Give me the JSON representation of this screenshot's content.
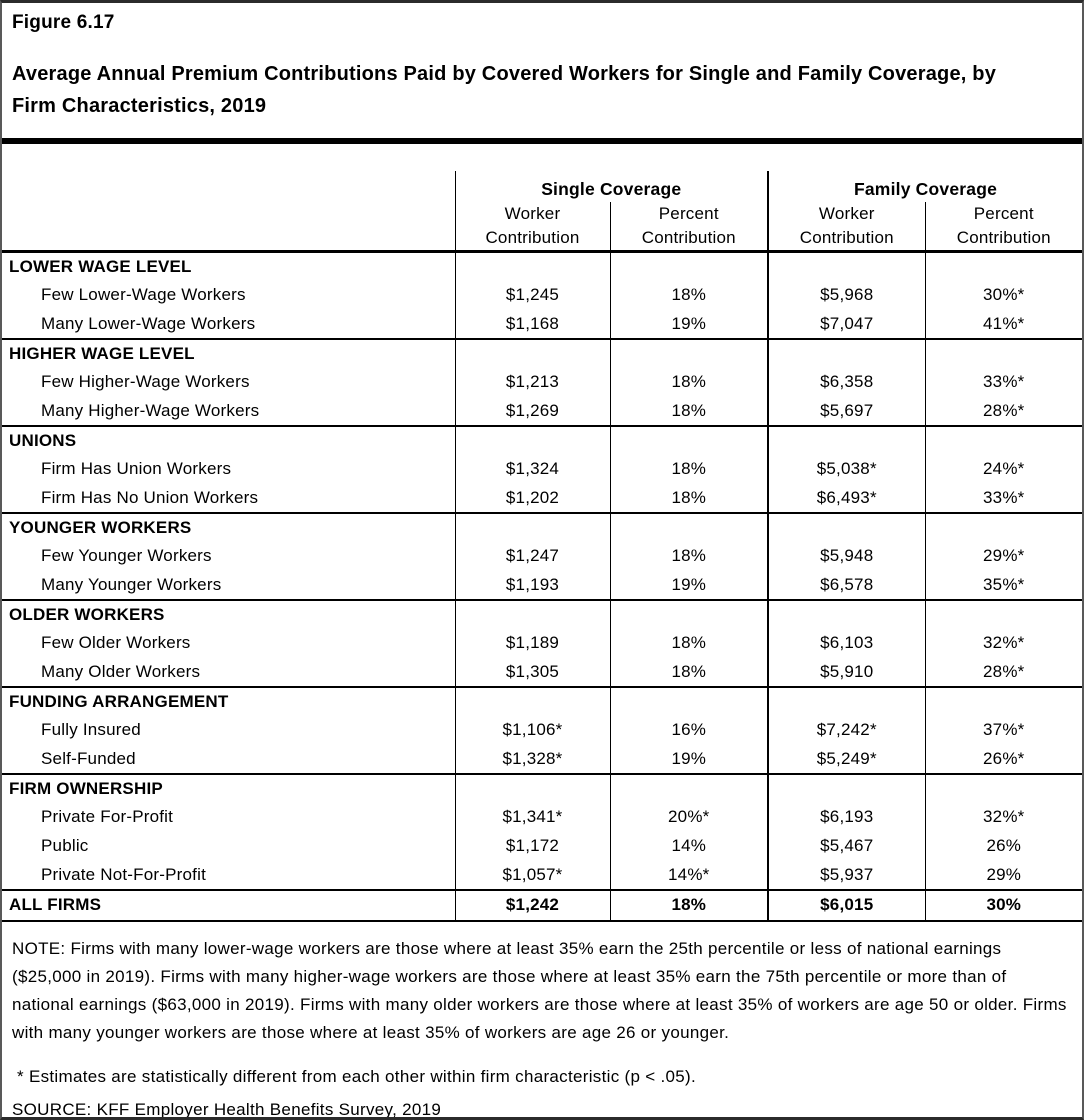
{
  "figure": {
    "label": "Figure 6.17",
    "title": "Average Annual Premium Contributions Paid by Covered Workers for Single and Family Coverage, by Firm Characteristics, 2019"
  },
  "table": {
    "col_groups": [
      {
        "label": "Single Coverage"
      },
      {
        "label": "Family Coverage"
      }
    ],
    "sub_headers": [
      "Worker\nContribution",
      "Percent\nContribution",
      "Worker\nContribution",
      "Percent\nContribution"
    ],
    "rows": [
      {
        "type": "section",
        "label": "LOWER WAGE LEVEL"
      },
      {
        "type": "data",
        "label": "Few Lower-Wage Workers",
        "values": [
          "$1,245",
          "18%",
          "$5,968",
          "30%*"
        ]
      },
      {
        "type": "data",
        "label": "Many Lower-Wage Workers",
        "values": [
          "$1,168",
          "19%",
          "$7,047",
          "41%*"
        ]
      },
      {
        "type": "section",
        "label": "HIGHER WAGE LEVEL"
      },
      {
        "type": "data",
        "label": "Few Higher-Wage Workers",
        "values": [
          "$1,213",
          "18%",
          "$6,358",
          "33%*"
        ]
      },
      {
        "type": "data",
        "label": "Many Higher-Wage Workers",
        "values": [
          "$1,269",
          "18%",
          "$5,697",
          "28%*"
        ]
      },
      {
        "type": "section",
        "label": "UNIONS"
      },
      {
        "type": "data",
        "label": "Firm Has Union Workers",
        "values": [
          "$1,324",
          "18%",
          "$5,038*",
          "24%*"
        ]
      },
      {
        "type": "data",
        "label": "Firm Has No Union Workers",
        "values": [
          "$1,202",
          "18%",
          "$6,493*",
          "33%*"
        ]
      },
      {
        "type": "section",
        "label": "YOUNGER WORKERS"
      },
      {
        "type": "data",
        "label": "Few Younger Workers",
        "values": [
          "$1,247",
          "18%",
          "$5,948",
          "29%*"
        ]
      },
      {
        "type": "data",
        "label": "Many Younger Workers",
        "values": [
          "$1,193",
          "19%",
          "$6,578",
          "35%*"
        ]
      },
      {
        "type": "section",
        "label": "OLDER WORKERS"
      },
      {
        "type": "data",
        "label": "Few Older Workers",
        "values": [
          "$1,189",
          "18%",
          "$6,103",
          "32%*"
        ]
      },
      {
        "type": "data",
        "label": "Many Older Workers",
        "values": [
          "$1,305",
          "18%",
          "$5,910",
          "28%*"
        ]
      },
      {
        "type": "section",
        "label": "FUNDING ARRANGEMENT"
      },
      {
        "type": "data",
        "label": "Fully Insured",
        "values": [
          "$1,106*",
          "16%",
          "$7,242*",
          "37%*"
        ]
      },
      {
        "type": "data",
        "label": "Self-Funded",
        "values": [
          "$1,328*",
          "19%",
          "$5,249*",
          "26%*"
        ]
      },
      {
        "type": "section",
        "label": "FIRM OWNERSHIP"
      },
      {
        "type": "data",
        "label": "Private For-Profit",
        "values": [
          "$1,341*",
          "20%*",
          "$6,193",
          "32%*"
        ]
      },
      {
        "type": "data",
        "label": "Public",
        "values": [
          "$1,172",
          "14%",
          "$5,467",
          "26%"
        ]
      },
      {
        "type": "data",
        "label": "Private Not-For-Profit",
        "values": [
          "$1,057*",
          "14%*",
          "$5,937",
          "29%"
        ]
      },
      {
        "type": "total",
        "label": "ALL FIRMS",
        "values": [
          "$1,242",
          "18%",
          "$6,015",
          "30%"
        ]
      }
    ]
  },
  "notes": {
    "note": "NOTE: Firms with many lower-wage workers are those where at least 35% earn the 25th percentile or less of national earnings ($25,000 in 2019). Firms with many higher-wage workers are those where at least 35% earn the 75th percentile or more than of national earnings ($63,000 in 2019). Firms with many older workers are those where at least 35% of workers are age 50 or older. Firms with many younger workers are those where at least 35% of workers are age 26 or younger.",
    "significance": "* Estimates are statistically different from each other within firm characteristic (p < .05).",
    "source": "SOURCE: KFF Employer Health Benefits Survey, 2019"
  },
  "colors": {
    "text": "#000000",
    "background": "#ffffff",
    "table_lines": "#000000",
    "frame": "#595959"
  }
}
